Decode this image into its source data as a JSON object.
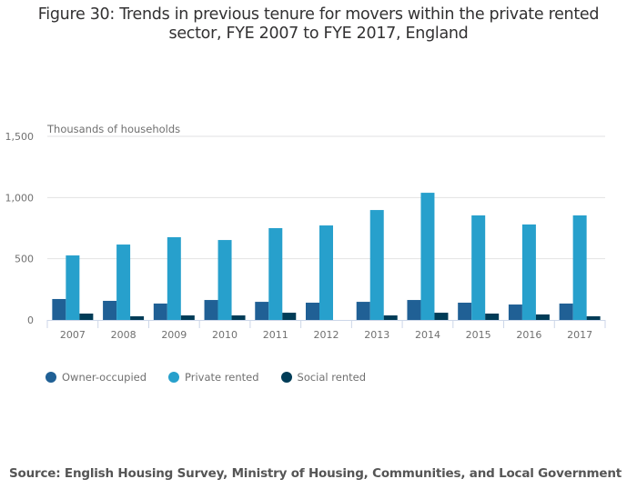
{
  "chart_data": {
    "type": "bar",
    "title": "Figure 30: Trends in previous tenure for movers within the private rented sector, FYE 2007 to FYE 2017, England",
    "title_lines": [
      "Figure 30: Trends in previous tenure for movers within the private rented",
      "sector, FYE 2007 to FYE 2017, England"
    ],
    "xlabel": "",
    "ylabel": "Thousands of households",
    "ylim": [
      0,
      1500
    ],
    "yticks": [
      0,
      500,
      1000,
      1500
    ],
    "ytick_labels": [
      "0",
      "500",
      "1,000",
      "1,500"
    ],
    "grid": true,
    "legend_position": "bottom-left",
    "categories": [
      "2007",
      "2008",
      "2009",
      "2010",
      "2011",
      "2012",
      "2013",
      "2014",
      "2015",
      "2016",
      "2017"
    ],
    "series": [
      {
        "name": "Owner-occupied",
        "color": "#206095",
        "values": [
          171,
          156,
          134,
          163,
          148,
          141,
          148,
          163,
          141,
          126,
          134
        ]
      },
      {
        "name": "Private rented",
        "color": "#27a0cc",
        "values": [
          527,
          616,
          676,
          653,
          750,
          772,
          898,
          1039,
          854,
          780,
          854
        ]
      },
      {
        "name": "Social rented",
        "color": "#003c57",
        "values": [
          52,
          30,
          37,
          37,
          59,
          0,
          37,
          59,
          52,
          45,
          30
        ]
      }
    ]
  },
  "source": "Source: English Housing Survey, Ministry of Housing, Communities, and Local Government"
}
